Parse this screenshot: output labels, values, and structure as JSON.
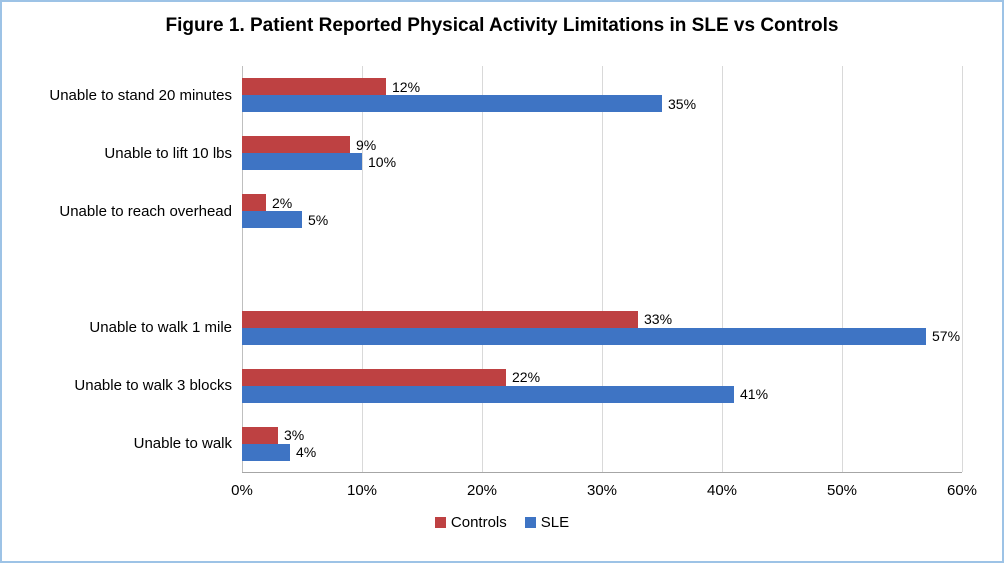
{
  "title": "Figure 1. Patient Reported Physical Activity Limitations in SLE vs Controls",
  "chart_data": {
    "type": "bar",
    "orientation": "horizontal",
    "title": "Figure 1. Patient Reported Physical Activity Limitations in SLE vs Controls",
    "categories": [
      "Unable to stand 20 minutes",
      "Unable to lift 10 lbs",
      "Unable to reach overhead",
      "",
      "Unable to walk 1 mile",
      "Unable to walk 3 blocks",
      "Unable to walk"
    ],
    "series": [
      {
        "name": "Controls",
        "color": "#BE4142",
        "values": [
          12,
          9,
          2,
          null,
          33,
          22,
          3
        ]
      },
      {
        "name": "SLE",
        "color": "#3E74C4",
        "values": [
          35,
          10,
          5,
          null,
          57,
          41,
          4
        ]
      }
    ],
    "data_labels": [
      [
        "12%",
        "9%",
        "2%",
        null,
        "33%",
        "22%",
        "3%"
      ],
      [
        "35%",
        "10%",
        "5%",
        null,
        "57%",
        "41%",
        "4%"
      ]
    ],
    "x_axis": {
      "min": 0,
      "max": 60,
      "tick_step": 10,
      "tick_labels": [
        "0%",
        "10%",
        "20%",
        "30%",
        "40%",
        "50%",
        "60%"
      ],
      "format": "percent"
    },
    "grid": true,
    "legend_position": "bottom",
    "colors": {
      "controls": "#BE4142",
      "sle": "#3E74C4",
      "gridline": "#D9D9D9",
      "border": "#9DC3E6"
    }
  }
}
